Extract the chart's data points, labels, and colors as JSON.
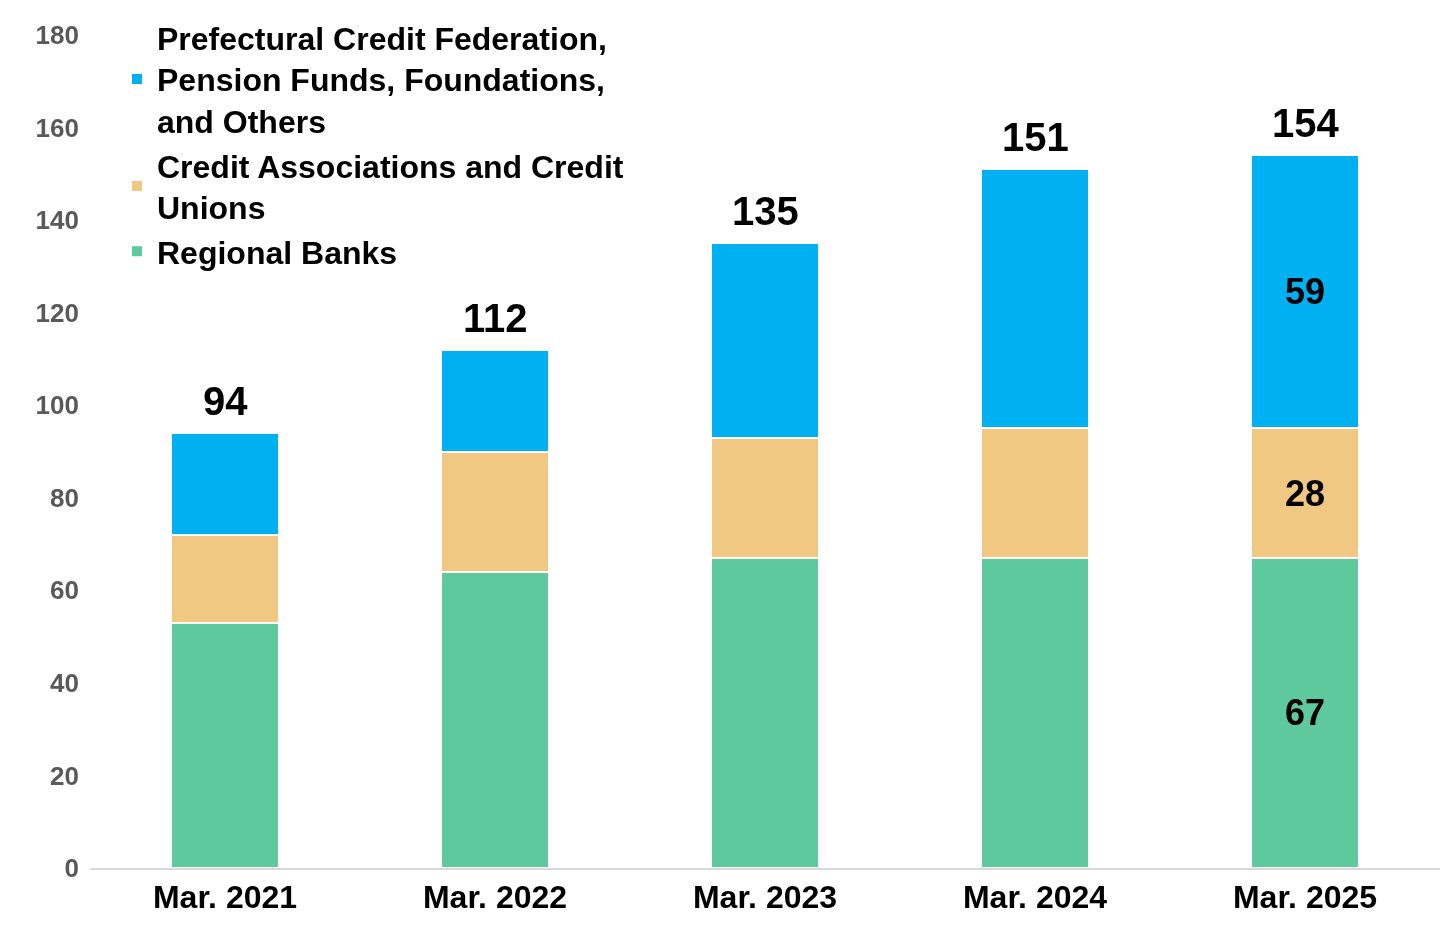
{
  "chart_data": {
    "type": "bar",
    "stacked": true,
    "categories": [
      "Mar. 2021",
      "Mar. 2022",
      "Mar. 2023",
      "Mar. 2024",
      "Mar. 2025"
    ],
    "series": [
      {
        "name": "Regional Banks",
        "color": "#5ec99c",
        "values": [
          53,
          64,
          67,
          67,
          67
        ],
        "value_labels": [
          null,
          null,
          null,
          null,
          "67"
        ]
      },
      {
        "name": "Credit Associations and Credit Unions",
        "color": "#f0c882",
        "values": [
          19,
          26,
          26,
          28,
          28
        ],
        "value_labels": [
          null,
          null,
          null,
          null,
          "28"
        ]
      },
      {
        "name": "Prefectural Credit Federation, Pension Funds, Foundations, and Others",
        "color": "#00b0f0",
        "values": [
          22,
          22,
          42,
          56,
          59
        ],
        "value_labels": [
          null,
          null,
          null,
          null,
          "59"
        ]
      }
    ],
    "totals": [
      "94",
      "112",
      "135",
      "151",
      "154"
    ],
    "ylim": [
      0,
      180
    ],
    "yticks": [
      0,
      20,
      40,
      60,
      80,
      100,
      120,
      140,
      160,
      180
    ],
    "legend": "top left"
  }
}
